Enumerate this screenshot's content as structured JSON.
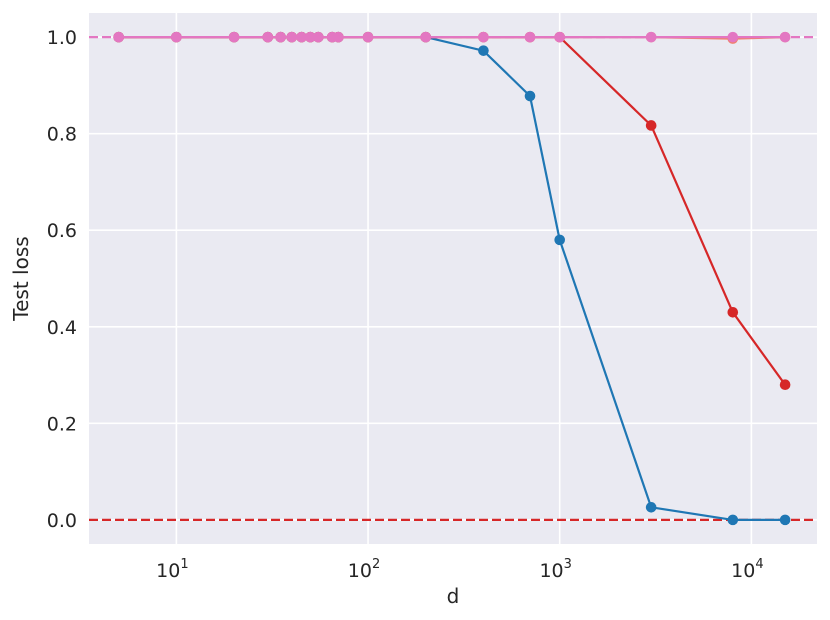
{
  "chart_data": {
    "type": "line",
    "title": "",
    "xlabel": "d",
    "ylabel": "Test loss",
    "xscale": "log",
    "xlim": [
      3.5,
      22000
    ],
    "ylim": [
      -0.05,
      1.05
    ],
    "grid": true,
    "legend": "none",
    "style": {
      "background": "#eaeaf2",
      "grid_color": "#ffffff"
    },
    "x_ticks": [
      {
        "base": "10",
        "exp": "1",
        "value": 10
      },
      {
        "base": "10",
        "exp": "2",
        "value": 100
      },
      {
        "base": "10",
        "exp": "3",
        "value": 1000
      },
      {
        "base": "10",
        "exp": "4",
        "value": 10000
      }
    ],
    "y_ticks": [
      {
        "label": "0.0",
        "value": 0.0
      },
      {
        "label": "0.2",
        "value": 0.2
      },
      {
        "label": "0.4",
        "value": 0.4
      },
      {
        "label": "0.6",
        "value": 0.6
      },
      {
        "label": "0.8",
        "value": 0.8
      },
      {
        "label": "1.0",
        "value": 1.0
      }
    ],
    "reference_lines": [
      {
        "y": 1.0,
        "color": "#e377c2",
        "style": "dashed"
      },
      {
        "y": 0.0,
        "color": "#d62728",
        "style": "dashed"
      }
    ],
    "series": [
      {
        "color": "#1f77b4",
        "x": [
          5,
          10,
          20,
          30,
          35,
          40,
          45,
          50,
          55,
          65,
          70,
          100,
          200,
          400,
          700,
          1000,
          3000,
          8000,
          15000
        ],
        "y": [
          1.0,
          1.0,
          1.0,
          1.0,
          1.0,
          1.0,
          1.0,
          1.0,
          1.0,
          1.0,
          1.0,
          1.0,
          1.0,
          0.972,
          0.878,
          0.58,
          0.026,
          0.0,
          0.0
        ]
      },
      {
        "color": "#d62728",
        "x": [
          5,
          10,
          20,
          30,
          35,
          40,
          45,
          50,
          55,
          65,
          70,
          100,
          200,
          400,
          700,
          1000,
          3000,
          8000,
          15000
        ],
        "y": [
          1.0,
          1.0,
          1.0,
          1.0,
          1.0,
          1.0,
          1.0,
          1.0,
          1.0,
          1.0,
          1.0,
          1.0,
          1.0,
          1.0,
          1.0,
          1.0,
          0.817,
          0.43,
          0.28
        ]
      },
      {
        "color": "#f08070",
        "x": [
          5,
          10,
          20,
          30,
          35,
          40,
          45,
          50,
          55,
          65,
          70,
          100,
          200,
          400,
          700,
          1000,
          3000,
          8000,
          15000
        ],
        "y": [
          1.0,
          1.0,
          1.0,
          1.0,
          1.0,
          1.0,
          1.0,
          1.0,
          1.0,
          1.0,
          1.0,
          1.0,
          1.0,
          1.0,
          1.0,
          1.0,
          1.0,
          0.997,
          1.0
        ]
      },
      {
        "color": "#e377c2",
        "x": [
          5,
          10,
          20,
          30,
          35,
          40,
          45,
          50,
          55,
          65,
          70,
          100,
          200,
          400,
          700,
          1000,
          3000,
          8000,
          15000
        ],
        "y": [
          1.0,
          1.0,
          1.0,
          1.0,
          1.0,
          1.0,
          1.0,
          1.0,
          1.0,
          1.0,
          1.0,
          1.0,
          1.0,
          1.0,
          1.0,
          1.0,
          1.0,
          1.0,
          1.0
        ]
      }
    ]
  }
}
